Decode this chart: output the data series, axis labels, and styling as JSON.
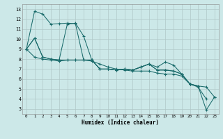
{
  "xlabel": "Humidex (Indice chaleur)",
  "bg_color": "#cce8e8",
  "grid_color": "#b0c8c8",
  "line_color": "#1a6b6b",
  "xlim": [
    -0.5,
    23.5
  ],
  "ylim": [
    2.5,
    13.5
  ],
  "xticks": [
    0,
    1,
    2,
    3,
    4,
    5,
    6,
    7,
    8,
    9,
    10,
    11,
    12,
    13,
    14,
    15,
    16,
    17,
    18,
    19,
    20,
    21,
    22,
    23
  ],
  "yticks": [
    3,
    4,
    5,
    6,
    7,
    8,
    9,
    10,
    11,
    12,
    13
  ],
  "series": [
    [
      9.0,
      12.8,
      12.5,
      11.5,
      11.55,
      11.6,
      11.55,
      7.9,
      7.9,
      7.0,
      7.0,
      6.9,
      7.0,
      6.9,
      7.2,
      7.5,
      6.9,
      6.9,
      6.8,
      6.5,
      5.5,
      5.3,
      null,
      null
    ],
    [
      9.0,
      10.1,
      8.2,
      8.0,
      7.9,
      11.5,
      11.6,
      10.3,
      7.9,
      7.0,
      7.0,
      6.9,
      7.0,
      6.9,
      7.2,
      7.5,
      7.2,
      7.7,
      7.4,
      6.5,
      5.5,
      5.3,
      2.9,
      4.2
    ],
    [
      9.0,
      10.1,
      8.2,
      8.0,
      7.9,
      7.9,
      7.9,
      7.9,
      7.9,
      7.0,
      7.0,
      6.9,
      7.0,
      6.9,
      7.2,
      7.5,
      6.9,
      6.9,
      6.8,
      6.5,
      5.5,
      5.3,
      5.2,
      4.2
    ],
    [
      9.0,
      8.2,
      8.0,
      7.9,
      7.8,
      7.9,
      7.9,
      7.9,
      7.8,
      7.5,
      7.2,
      7.0,
      6.9,
      6.8,
      6.8,
      6.8,
      6.6,
      6.5,
      6.5,
      6.3,
      5.5,
      5.2,
      4.0,
      null
    ]
  ]
}
